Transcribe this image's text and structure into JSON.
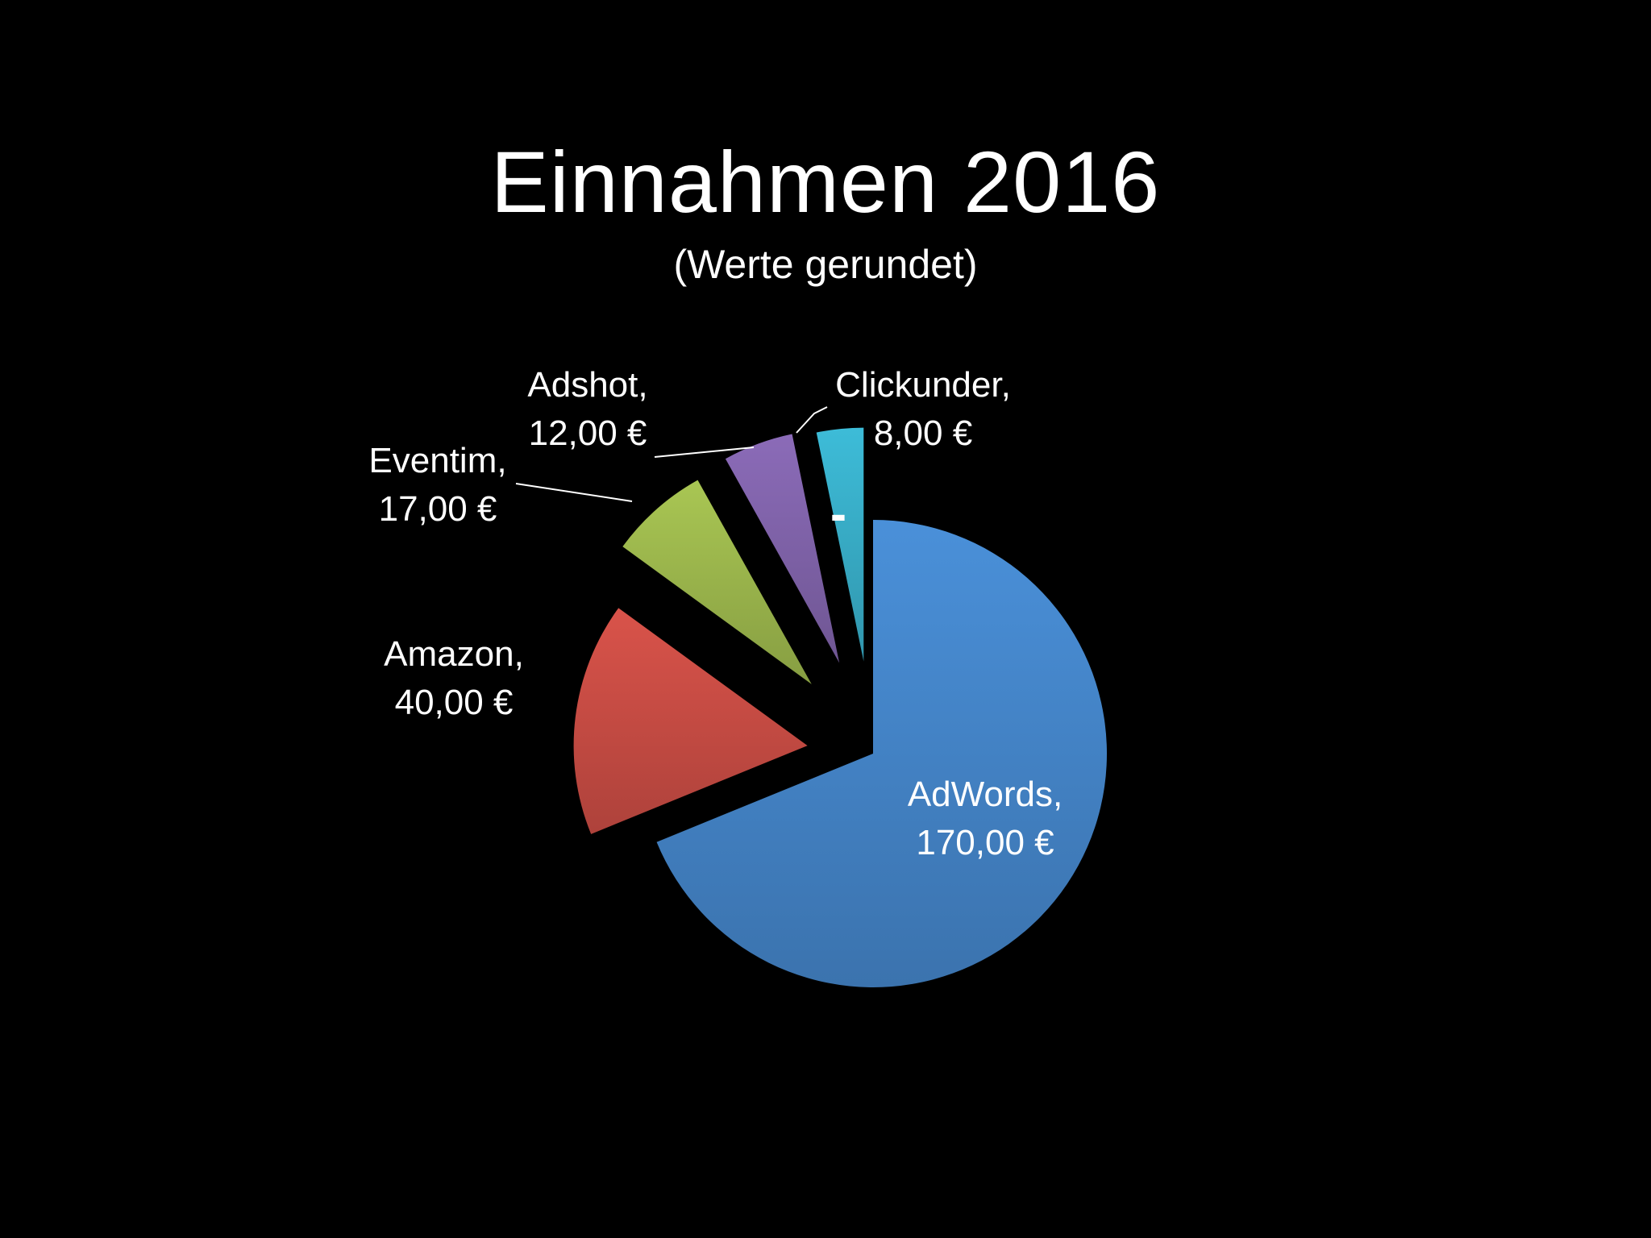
{
  "chart_data": {
    "type": "pie",
    "title": "Einnahmen 2016",
    "subtitle": "(Werte gerundet)",
    "exploded": true,
    "categories": [
      "AdWords",
      "Amazon",
      "Eventim",
      "Adshot",
      "Clickunder"
    ],
    "values": [
      170,
      40,
      17,
      12,
      8
    ],
    "labels": [
      {
        "name": "AdWords,",
        "value": "170,00 €"
      },
      {
        "name": "Amazon,",
        "value": "40,00 €"
      },
      {
        "name": "Eventim,",
        "value": "17,00 €"
      },
      {
        "name": "Adshot,",
        "value": "12,00 €"
      },
      {
        "name": "Clickunder,",
        "value": "8,00 €"
      }
    ],
    "colors": [
      "#4a90d9",
      "#d9534a",
      "#a9c653",
      "#8b6bb8",
      "#3dbcd8"
    ],
    "stray_mark": "-"
  }
}
